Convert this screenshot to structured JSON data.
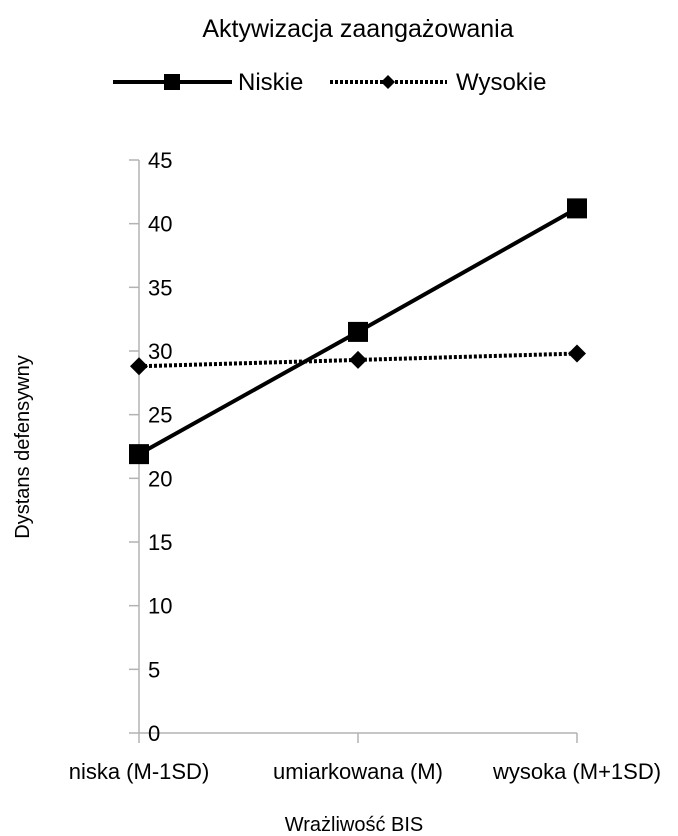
{
  "chart_data": {
    "type": "line",
    "title": "Aktywizacja zaangażowania",
    "xlabel": "Wrażliwość BIS",
    "ylabel": "Dystans defensywny",
    "categories": [
      "niska (M-1SD)",
      "umiarkowana (M)",
      "wysoka (M+1SD)"
    ],
    "ylim": [
      0,
      45
    ],
    "yticks": [
      0,
      5,
      10,
      15,
      20,
      25,
      30,
      35,
      40,
      45
    ],
    "grid": false,
    "legend_position": "top",
    "series": [
      {
        "name": "Niskie",
        "values": [
          21.9,
          31.5,
          41.2
        ],
        "line_style": "solid",
        "marker": "square",
        "color": "#000000"
      },
      {
        "name": "Wysokie",
        "values": [
          28.8,
          29.3,
          29.8
        ],
        "line_style": "dotted",
        "marker": "diamond",
        "color": "#000000"
      }
    ]
  }
}
